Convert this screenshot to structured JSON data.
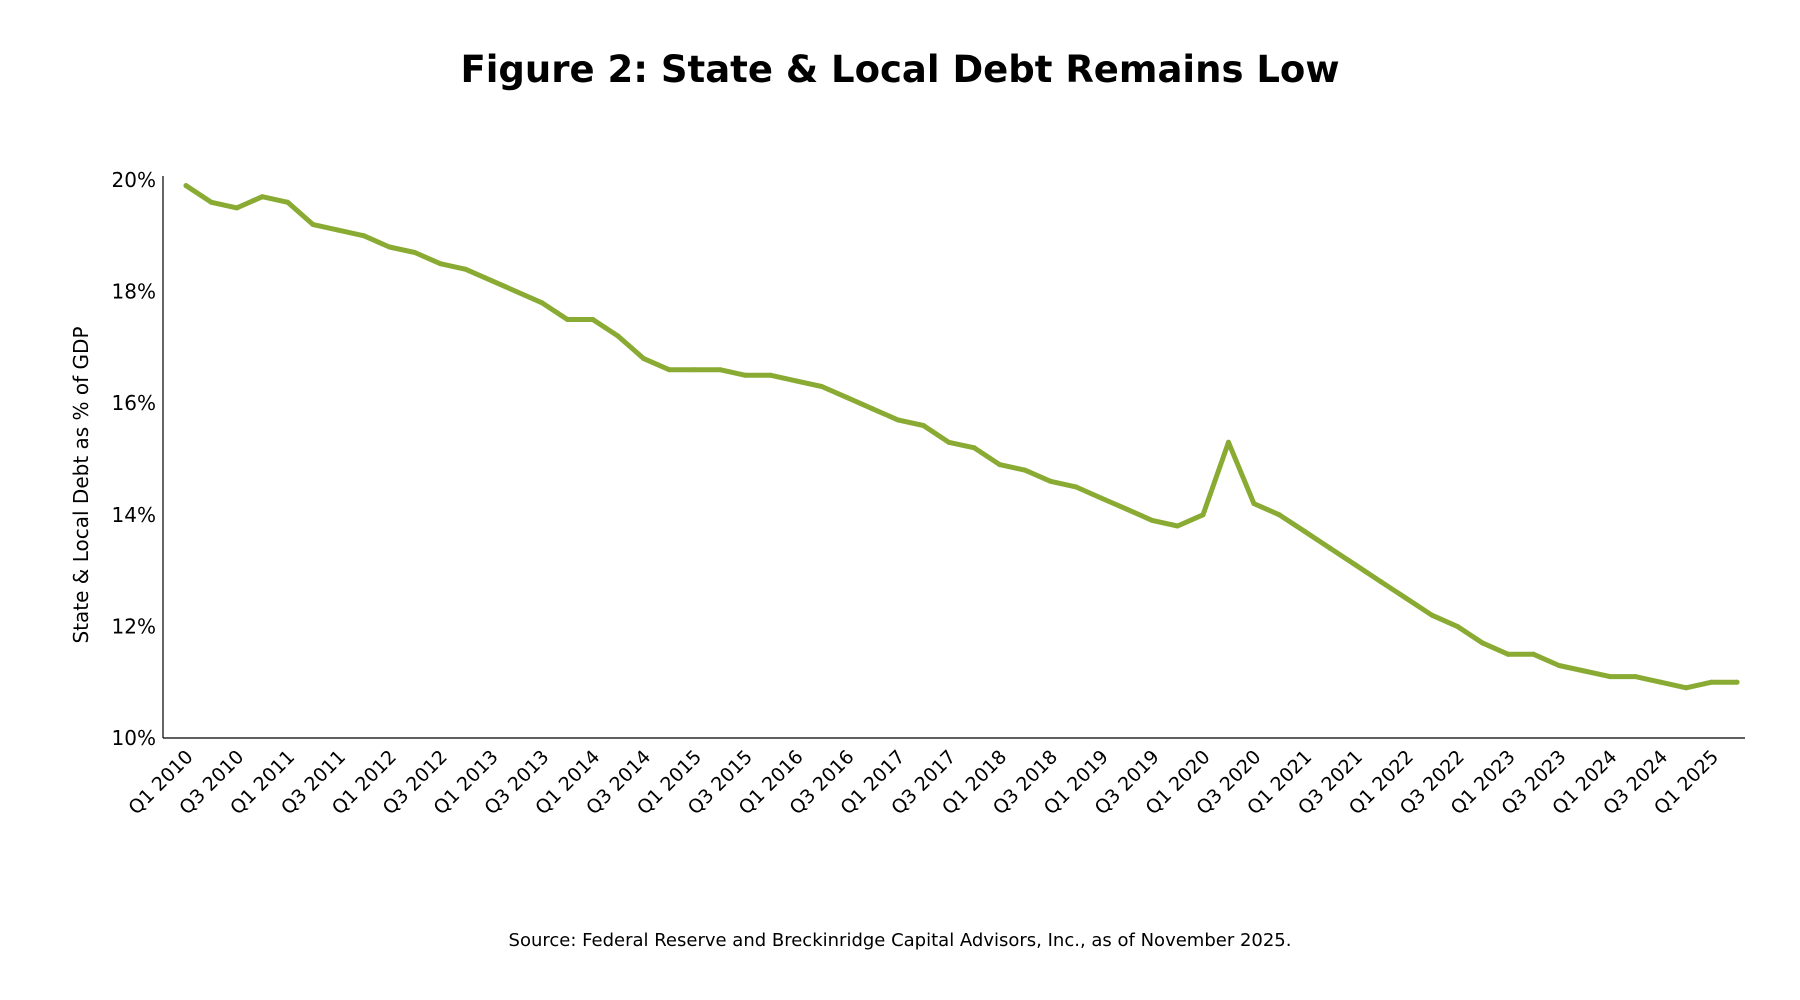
{
  "title": "Figure 2: State & Local Debt Remains Low",
  "source": "Source: Federal Reserve and Breckinridge Capital Advisors, Inc., as of November 2025.",
  "colors": {
    "line": "#8aab33",
    "axis": "#000000",
    "text": "#000000"
  },
  "chart_data": {
    "type": "line",
    "title": "Figure 2: State & Local Debt Remains Low",
    "xlabel": "",
    "ylabel": "State & Local Debt as % of GDP",
    "ylim": [
      10,
      20
    ],
    "yticks": [
      "10%",
      "12%",
      "14%",
      "16%",
      "18%",
      "20%"
    ],
    "ytick_values": [
      10,
      12,
      14,
      16,
      18,
      20
    ],
    "grid": false,
    "legend": "none",
    "x": [
      "Q1 2010",
      "Q2 2010",
      "Q3 2010",
      "Q4 2010",
      "Q1 2011",
      "Q2 2011",
      "Q3 2011",
      "Q4 2011",
      "Q1 2012",
      "Q2 2012",
      "Q3 2012",
      "Q4 2012",
      "Q1 2013",
      "Q2 2013",
      "Q3 2013",
      "Q4 2013",
      "Q1 2014",
      "Q2 2014",
      "Q3 2014",
      "Q4 2014",
      "Q1 2015",
      "Q2 2015",
      "Q3 2015",
      "Q4 2015",
      "Q1 2016",
      "Q2 2016",
      "Q3 2016",
      "Q4 2016",
      "Q1 2017",
      "Q2 2017",
      "Q3 2017",
      "Q4 2017",
      "Q1 2018",
      "Q2 2018",
      "Q3 2018",
      "Q4 2018",
      "Q1 2019",
      "Q2 2019",
      "Q3 2019",
      "Q4 2019",
      "Q1 2020",
      "Q2 2020",
      "Q3 2020",
      "Q4 2020",
      "Q1 2021",
      "Q2 2021",
      "Q3 2021",
      "Q4 2021",
      "Q1 2022",
      "Q2 2022",
      "Q3 2022",
      "Q4 2022",
      "Q1 2023",
      "Q2 2023",
      "Q3 2023",
      "Q4 2023",
      "Q1 2024",
      "Q2 2024",
      "Q3 2024",
      "Q4 2024",
      "Q1 2025",
      "Q2 2025"
    ],
    "xtick_labels": [
      "Q1 2010",
      "Q3 2010",
      "Q1 2011",
      "Q3 2011",
      "Q1 2012",
      "Q3 2012",
      "Q1 2013",
      "Q3 2013",
      "Q1 2014",
      "Q3 2014",
      "Q1 2015",
      "Q3 2015",
      "Q1 2016",
      "Q3 2016",
      "Q1 2017",
      "Q3 2017",
      "Q1 2018",
      "Q3 2018",
      "Q1 2019",
      "Q3 2019",
      "Q1 2020",
      "Q3 2020",
      "Q1 2021",
      "Q3 2021",
      "Q1 2022",
      "Q3 2022",
      "Q1 2023",
      "Q3 2023",
      "Q1 2024",
      "Q3 2024",
      "Q1 2025"
    ],
    "series": [
      {
        "values": [
          19.9,
          19.6,
          19.5,
          19.7,
          19.6,
          19.2,
          19.1,
          19.0,
          18.8,
          18.7,
          18.5,
          18.4,
          18.2,
          18.0,
          17.8,
          17.5,
          17.5,
          17.2,
          16.8,
          16.6,
          16.6,
          16.6,
          16.5,
          16.5,
          16.4,
          16.3,
          16.1,
          15.9,
          15.7,
          15.6,
          15.3,
          15.2,
          14.9,
          14.8,
          14.6,
          14.5,
          14.3,
          14.1,
          13.9,
          13.8,
          14.0,
          15.3,
          14.2,
          14.0,
          13.7,
          13.4,
          13.1,
          12.8,
          12.5,
          12.2,
          12.0,
          11.7,
          11.5,
          11.5,
          11.3,
          11.2,
          11.1,
          11.1,
          11.0,
          10.9,
          11.0,
          11.0
        ]
      }
    ]
  }
}
